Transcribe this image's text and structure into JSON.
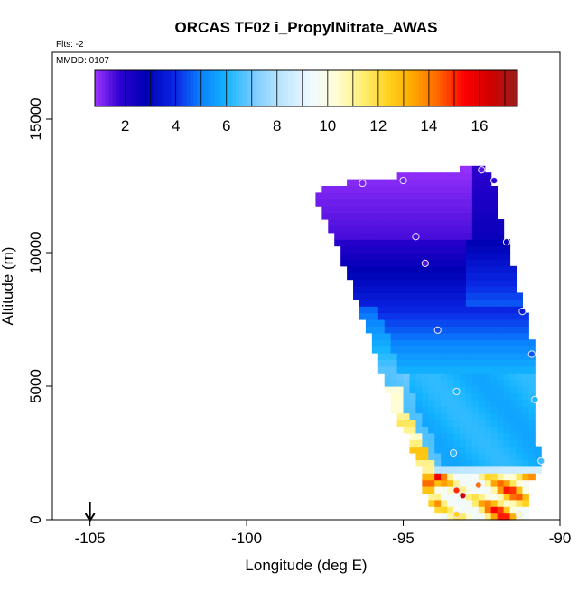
{
  "chart_data": {
    "type": "heatmap",
    "title": "ORCAS TF02 i_PropylNitrate_AWAS",
    "flts_label": "Flts: -2",
    "mmdd_label": "MMDD: 0107",
    "xlabel": "Longitude (deg E)",
    "ylabel": "Altitude (m)",
    "xlim": [
      -106.2,
      -90
    ],
    "ylim": [
      0,
      17500
    ],
    "x_ticks": [
      -105,
      -100,
      -95,
      -90
    ],
    "x_tick_labels": [
      "-105",
      "-100",
      "-95",
      "-90"
    ],
    "y_ticks": [
      0,
      5000,
      10000,
      15000
    ],
    "y_tick_labels": [
      "0",
      "5000",
      "10000",
      "15000"
    ],
    "colorbar": {
      "vmin": 0.8,
      "vmax": 17.5,
      "ticks": [
        2,
        4,
        6,
        8,
        10,
        12,
        14,
        16
      ],
      "tick_labels": [
        "2",
        "4",
        "6",
        "8",
        "10",
        "12",
        "14",
        "16"
      ],
      "color_stops": [
        {
          "v": 0.8,
          "c": "#9f35ff"
        },
        {
          "v": 1.8,
          "c": "#2e00d0"
        },
        {
          "v": 2.8,
          "c": "#0000b4"
        },
        {
          "v": 4.0,
          "c": "#0a28e6"
        },
        {
          "v": 5.0,
          "c": "#0a82ff"
        },
        {
          "v": 6.0,
          "c": "#14b4ff"
        },
        {
          "v": 7.0,
          "c": "#73caff"
        },
        {
          "v": 8.0,
          "c": "#b4e2ff"
        },
        {
          "v": 9.4,
          "c": "#f2fbff"
        },
        {
          "v": 10.4,
          "c": "#fffdd0"
        },
        {
          "v": 11.4,
          "c": "#ffee73"
        },
        {
          "v": 12.4,
          "c": "#ffd21e"
        },
        {
          "v": 13.4,
          "c": "#ffa500"
        },
        {
          "v": 14.4,
          "c": "#ff6400"
        },
        {
          "v": 15.4,
          "c": "#ff0000"
        },
        {
          "v": 16.4,
          "c": "#d20000"
        },
        {
          "v": 17.5,
          "c": "#9a1e1e"
        }
      ]
    },
    "arrow_marker_lon": -105,
    "field": {
      "lon_step": 0.2,
      "alt_step": 250,
      "columns": [
        {
          "lon": -93.6,
          "bottom": 0,
          "top": 4200
        },
        {
          "lon": -91.0,
          "bottom": 0,
          "top": 2200
        }
      ]
    },
    "sample_points": [
      {
        "lon": -95.0,
        "alt": 12700,
        "value": 1.2
      },
      {
        "lon": -96.3,
        "alt": 12600,
        "value": 1.1
      },
      {
        "lon": -92.5,
        "alt": 13100,
        "value": 1.4
      },
      {
        "lon": -92.1,
        "alt": 12700,
        "value": 1.8
      },
      {
        "lon": -94.6,
        "alt": 10600,
        "value": 1.6
      },
      {
        "lon": -94.3,
        "alt": 9600,
        "value": 1.5
      },
      {
        "lon": -91.7,
        "alt": 10400,
        "value": 2.6
      },
      {
        "lon": -91.2,
        "alt": 7800,
        "value": 3.6
      },
      {
        "lon": -93.9,
        "alt": 7100,
        "value": 4.4
      },
      {
        "lon": -90.9,
        "alt": 6200,
        "value": 4.5
      },
      {
        "lon": -93.3,
        "alt": 4800,
        "value": 6.0
      },
      {
        "lon": -90.8,
        "alt": 4500,
        "value": 6.1
      },
      {
        "lon": -93.4,
        "alt": 2500,
        "value": 6.2
      },
      {
        "lon": -90.6,
        "alt": 2200,
        "value": 6.4
      },
      {
        "lon": -93.3,
        "alt": 1100,
        "value": 15.0
      },
      {
        "lon": -92.6,
        "alt": 1300,
        "value": 14.2
      },
      {
        "lon": -93.1,
        "alt": 900,
        "value": 16.5
      },
      {
        "lon": -93.3,
        "alt": 200,
        "value": 12.4
      },
      {
        "lon": -91.3,
        "alt": 200,
        "value": 10.6
      }
    ]
  }
}
